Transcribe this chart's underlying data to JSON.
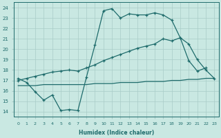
{
  "xlabel": "Humidex (Indice chaleur)",
  "xlim": [
    -0.5,
    23.5
  ],
  "ylim": [
    13.5,
    24.5
  ],
  "xticks": [
    0,
    1,
    2,
    3,
    4,
    5,
    6,
    7,
    8,
    9,
    10,
    11,
    12,
    13,
    14,
    15,
    16,
    17,
    18,
    19,
    20,
    21,
    22,
    23
  ],
  "yticks": [
    14,
    15,
    16,
    17,
    18,
    19,
    20,
    21,
    22,
    23,
    24
  ],
  "bg_color": "#c9e8e2",
  "grid_color": "#a8ccc8",
  "line_color": "#1e6b6b",
  "s1_x": [
    0,
    1,
    2,
    3,
    4,
    5,
    6,
    7,
    8,
    9,
    10,
    11,
    12,
    13,
    14,
    15,
    16,
    17,
    18,
    19,
    20,
    21,
    22
  ],
  "s1_y": [
    17.2,
    16.8,
    15.9,
    15.1,
    15.6,
    14.1,
    14.2,
    14.1,
    17.3,
    20.4,
    23.7,
    23.9,
    23.0,
    23.4,
    23.3,
    23.3,
    23.5,
    23.3,
    22.8,
    21.1,
    18.9,
    17.9,
    18.2
  ],
  "s2_x": [
    0,
    1,
    2,
    3,
    4,
    5,
    6,
    7,
    8,
    9,
    10,
    11,
    12,
    13,
    14,
    15,
    16,
    17,
    18,
    19,
    20,
    21,
    22,
    23
  ],
  "s2_y": [
    17.0,
    17.2,
    17.4,
    17.6,
    17.8,
    17.9,
    18.0,
    17.9,
    18.2,
    18.5,
    18.9,
    19.2,
    19.5,
    19.8,
    20.1,
    20.3,
    20.5,
    21.0,
    20.8,
    21.1,
    20.5,
    19.0,
    18.0,
    17.2
  ],
  "s3_x": [
    0,
    1,
    2,
    3,
    4,
    5,
    6,
    7,
    8,
    9,
    10,
    11,
    12,
    13,
    14,
    15,
    16,
    17,
    18,
    19,
    20,
    21,
    22,
    23
  ],
  "s3_y": [
    16.5,
    16.5,
    16.5,
    16.6,
    16.6,
    16.6,
    16.6,
    16.6,
    16.6,
    16.7,
    16.7,
    16.7,
    16.8,
    16.8,
    16.8,
    16.9,
    16.9,
    16.9,
    17.0,
    17.0,
    17.1,
    17.1,
    17.2,
    17.2
  ]
}
